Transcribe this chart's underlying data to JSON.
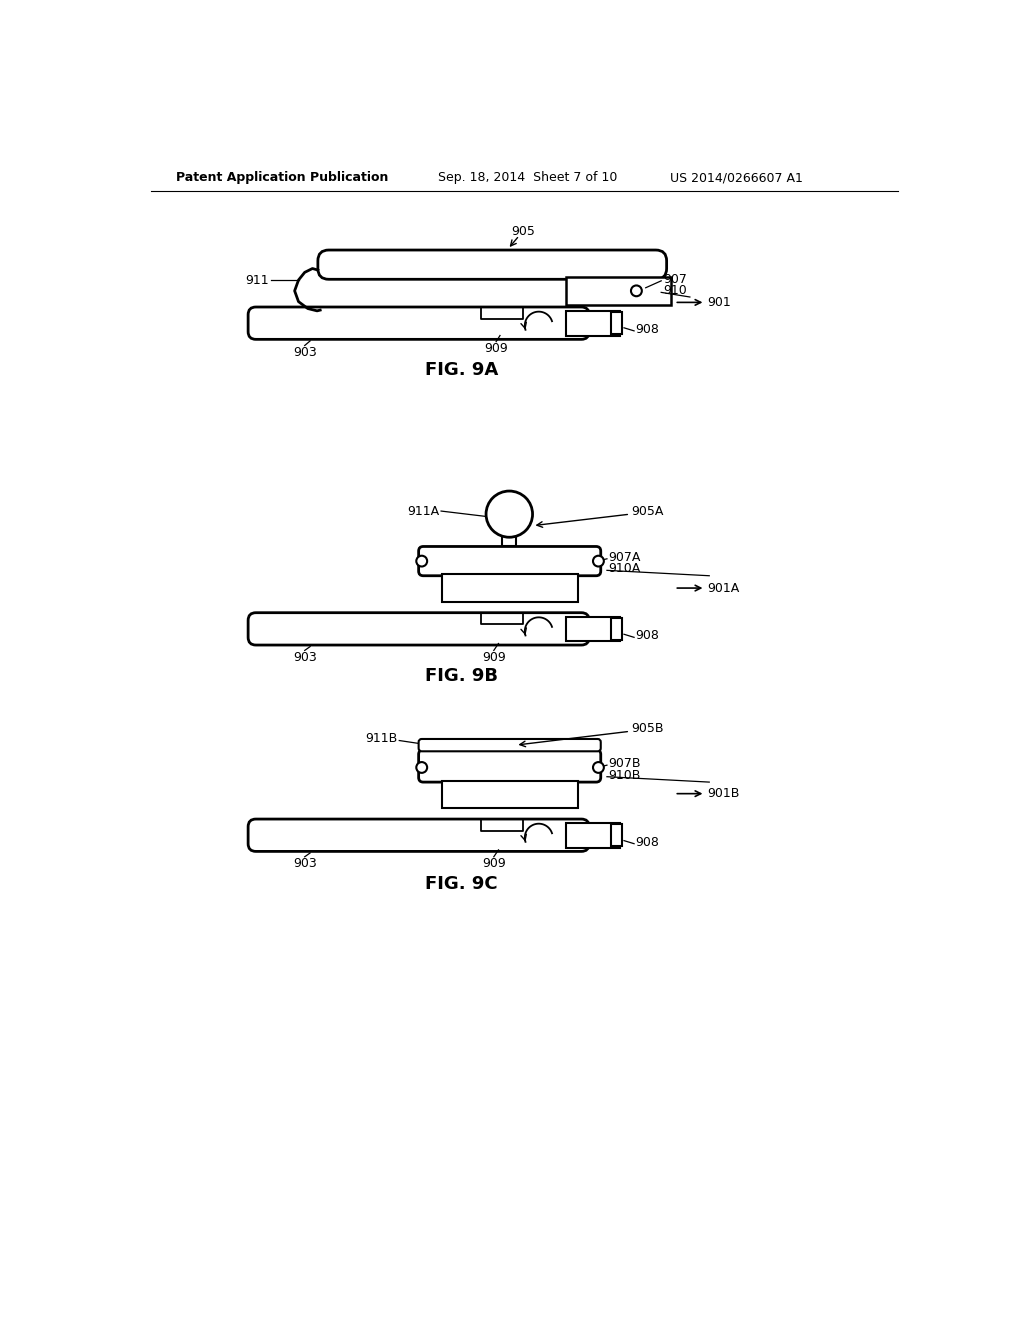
{
  "background_color": "#ffffff",
  "line_color": "#000000",
  "header_left": "Patent Application Publication",
  "header_mid": "Sep. 18, 2014  Sheet 7 of 10",
  "header_right": "US 2014/0266607 A1",
  "header_fontsize": 9,
  "ref_fontsize": 9,
  "fig_label_fontsize": 13
}
